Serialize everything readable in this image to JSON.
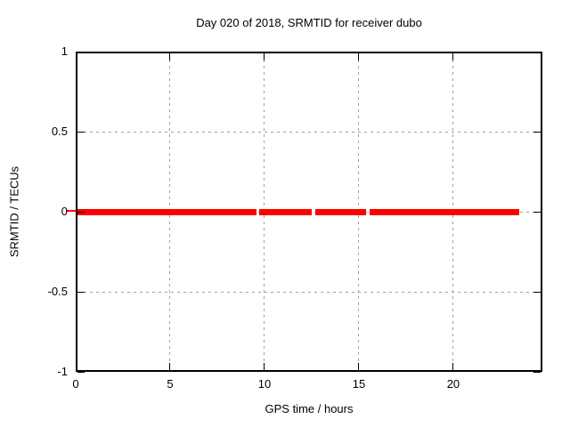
{
  "chart_data": {
    "type": "line",
    "title": "Day 020 of 2018, SRMTID for receiver dubo",
    "xlabel": "GPS time / hours",
    "ylabel": "SRMTID / TECUs",
    "xlim": [
      0,
      24.72
    ],
    "ylim": [
      -1,
      1
    ],
    "xticks": [
      0,
      5,
      10,
      15,
      20
    ],
    "xtick_labels": [
      "0",
      "5",
      "10",
      "15",
      "20"
    ],
    "yticks": [
      1,
      0.5,
      0,
      -0.5,
      -1
    ],
    "ytick_labels": [
      "1",
      "0.5",
      "0",
      "-0.5",
      "-1"
    ],
    "grid": true,
    "legend": "none",
    "series": [
      {
        "name": "SRMTID",
        "color": "#ff0000",
        "style": "thick horizontal line at constant value",
        "y_value": 0,
        "segments_x_hours": [
          [
            0,
            9.57
          ],
          [
            9.73,
            12.5
          ],
          [
            12.69,
            15.38
          ],
          [
            15.57,
            23.49
          ]
        ]
      }
    ],
    "colors": {
      "line": "#ff0000",
      "grid": "#a0a0a0",
      "axis": "#000000",
      "background": "#ffffff"
    }
  }
}
